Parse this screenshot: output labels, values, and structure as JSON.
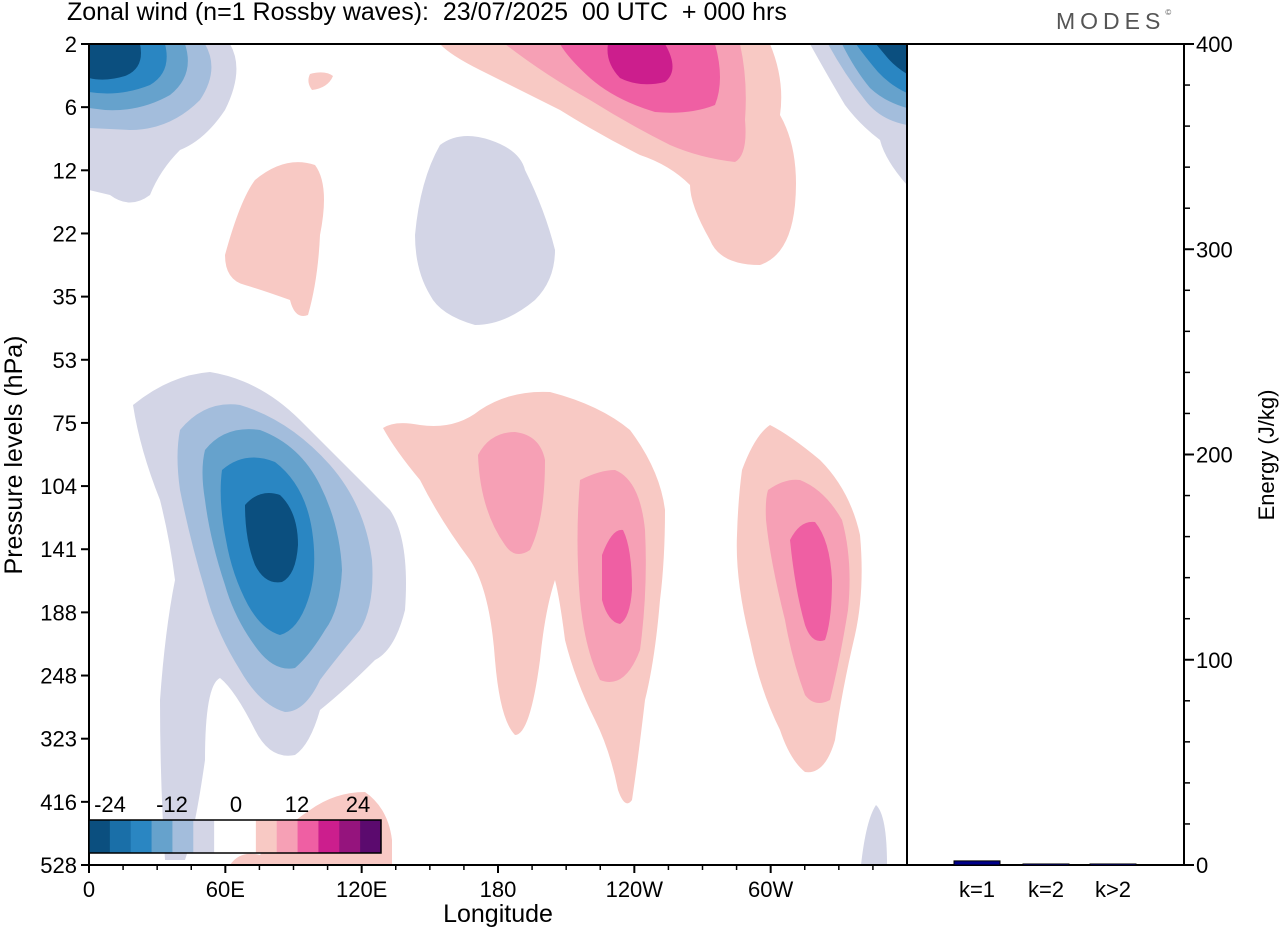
{
  "title": "Zonal wind (n=1 Rossby waves):  23/07/2025  00 UTC  + 000 hrs",
  "logo": "MODES",
  "chart_data": [
    {
      "type": "heatmap",
      "xlabel": "Longitude",
      "ylabel": "Pressure levels (hPa)",
      "x_ticks": [
        "0",
        "60E",
        "120E",
        "180",
        "120W",
        "60W"
      ],
      "x_range_deg": [
        0,
        360
      ],
      "y_ticks": [
        "2",
        "6",
        "12",
        "22",
        "35",
        "53",
        "75",
        "104",
        "141",
        "188",
        "248",
        "323",
        "416",
        "528"
      ],
      "colorbar": {
        "labels": [
          "-24",
          "-12",
          "0",
          "12",
          "24"
        ],
        "colors": [
          "#0b4f7f",
          "#1a6fa8",
          "#2a86c2",
          "#66a2cc",
          "#a3bddc",
          "#d3d5e6",
          "#ffffff",
          "#ffffff",
          "#f8c9c4",
          "#f6a0b5",
          "#ef5fa3",
          "#cc1e8d",
          "#95147d",
          "#5b0a6e"
        ]
      },
      "features": [
        {
          "kind": "easterly core",
          "lon": 17,
          "level": "2",
          "min": -24
        },
        {
          "kind": "westerly core",
          "lon": 236,
          "level": "2",
          "max": 24
        },
        {
          "kind": "easterly core",
          "lon": 356,
          "level": "2",
          "max_abs": 24
        },
        {
          "kind": "westerly patch",
          "lon": 90,
          "level": "22",
          "max": 6
        },
        {
          "kind": "easterly patch",
          "lon": 198,
          "level": "22",
          "min": -6
        },
        {
          "kind": "easterly core",
          "lon": 81,
          "level": "141",
          "min": -24
        },
        {
          "kind": "westerly core",
          "lon": 180,
          "level": "104",
          "max": 12
        },
        {
          "kind": "westerly core",
          "lon": 232,
          "level": "141",
          "max": 18
        },
        {
          "kind": "westerly core",
          "lon": 321,
          "level": "141",
          "max": 18
        }
      ]
    },
    {
      "type": "bar",
      "ylabel": "Energy (J/kg)",
      "ylim": [
        0,
        400
      ],
      "yticks": [
        "0",
        "100",
        "200",
        "300",
        "400"
      ],
      "categories": [
        "k=1",
        "k=2",
        "k>2"
      ],
      "values": [
        2,
        0.5,
        0.5
      ],
      "bar_color": "#00008b"
    }
  ]
}
